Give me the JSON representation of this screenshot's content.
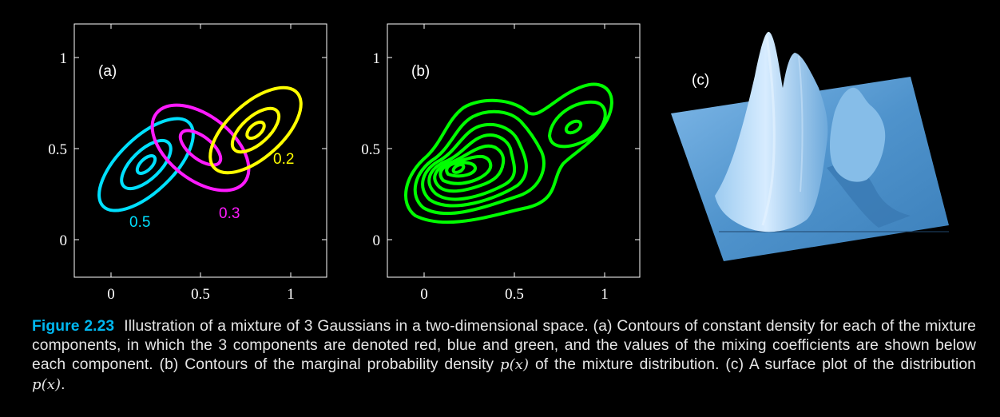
{
  "panels": {
    "a": {
      "label": "(a)",
      "x_ticks": [
        "0",
        "0.5",
        "1"
      ],
      "y_ticks": [
        "1",
        "0.5",
        "0"
      ],
      "coefficients": [
        {
          "value": "0.5",
          "color": "#00e0ff"
        },
        {
          "value": "0.3",
          "color": "#ff1aff"
        },
        {
          "value": "0.2",
          "color": "#ffff00"
        }
      ]
    },
    "b": {
      "label": "(b)",
      "x_ticks": [
        "0",
        "0.5",
        "1"
      ],
      "y_ticks": [
        "1",
        "0.5",
        "0"
      ],
      "color": "#00ff00"
    },
    "c": {
      "label": "(c)",
      "surface_color": "#5a9fd4"
    }
  },
  "caption": {
    "figure_label": "Figure 2.23",
    "text_1": "Illustration of a mixture of 3 Gaussians in a two-dimensional space.  (a) Contours of constant density for each of the mixture components, in which the 3 components are denoted red, blue and green, and the values of the mixing coefficients are shown below each component. (b) Contours of the marginal probability density",
    "math_1": "p(x)",
    "text_2": "of the mixture distribution. (c) A surface plot of the distribution",
    "math_2": "p(x)",
    "text_3": "."
  }
}
